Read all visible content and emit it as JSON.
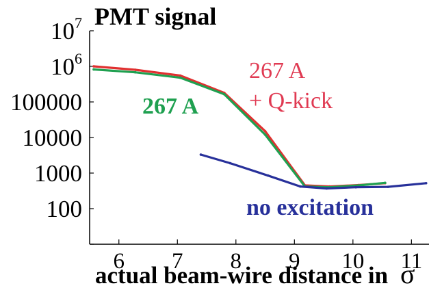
{
  "chart_data": {
    "type": "line",
    "title": "PMT signal",
    "xlabel": "actual beam-wire distance in",
    "xlabel_symbol": "σ",
    "ylabel": "",
    "xlim": [
      5.5,
      11.3
    ],
    "ylim": [
      10,
      10000000
    ],
    "yscale": "log",
    "grid": false,
    "x_ticks": [
      {
        "value": 6,
        "label": "6"
      },
      {
        "value": 7,
        "label": "7"
      },
      {
        "value": 8,
        "label": "8"
      },
      {
        "value": 9,
        "label": "9"
      },
      {
        "value": 10,
        "label": "10"
      },
      {
        "value": 11,
        "label": "11"
      }
    ],
    "y_ticks": [
      {
        "value": 100,
        "base": "100",
        "exp": ""
      },
      {
        "value": 1000,
        "base": "1000",
        "exp": ""
      },
      {
        "value": 10000,
        "base": "10000",
        "exp": ""
      },
      {
        "value": 100000,
        "base": "100000",
        "exp": ""
      },
      {
        "value": 1000000,
        "base": "10",
        "exp": "6"
      },
      {
        "value": 10000000,
        "base": "10",
        "exp": "7"
      }
    ],
    "series": [
      {
        "color": "#e03030",
        "x": [
          5.57,
          6.28,
          7.05,
          7.8,
          8.5,
          9.18,
          9.6,
          10.1,
          10.55
        ],
        "y": [
          1000000,
          800000,
          550000,
          180000,
          15000,
          450,
          420,
          460,
          520
        ]
      },
      {
        "color": "#1fa050",
        "x": [
          5.57,
          6.28,
          7.05,
          7.8,
          8.5,
          9.18,
          9.6,
          10.1,
          10.55
        ],
        "y": [
          820000,
          680000,
          480000,
          165000,
          12000,
          420,
          400,
          450,
          530
        ]
      },
      {
        "color": "#27309a",
        "x": [
          7.4,
          7.9,
          8.55,
          9.1,
          9.55,
          10.05,
          10.6,
          11.25
        ],
        "y": [
          3300,
          1900,
          850,
          420,
          370,
          400,
          410,
          520
        ]
      }
    ],
    "annotations": [
      {
        "text": "267 A",
        "color": "#e03a52"
      },
      {
        "text": "+ Q-kick",
        "color": "#e03a52"
      },
      {
        "text": "267 A",
        "color": "#1fa050"
      },
      {
        "text": "no excitation",
        "color": "#27309a"
      }
    ]
  }
}
